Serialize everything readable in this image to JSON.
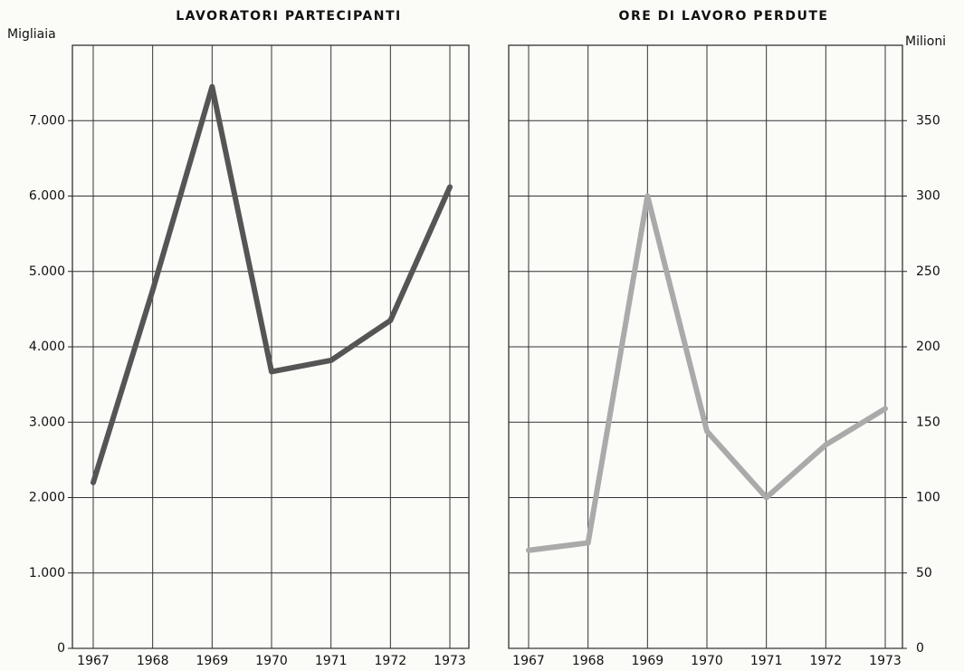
{
  "chart_data": [
    {
      "type": "line",
      "title": "LAVORATORI PARTECIPANTI",
      "ylabel": "Migliaia",
      "categories": [
        "1967",
        "1968",
        "1969",
        "1970",
        "1971",
        "1972",
        "1973"
      ],
      "values": [
        2200,
        4750,
        7450,
        3670,
        3820,
        4350,
        6120
      ],
      "color": "#555555",
      "ylim": [
        0,
        8000
      ],
      "yticks": [
        0,
        {
          "value": 1000,
          "label": "1.000"
        },
        {
          "value": 2000,
          "label": "2.000"
        },
        {
          "value": 3000,
          "label": "3.000"
        },
        {
          "value": 4000,
          "label": "4.000"
        },
        {
          "value": 5000,
          "label": "5.000"
        },
        {
          "value": 6000,
          "label": "6.000"
        },
        {
          "value": 7000,
          "label": "7.000"
        }
      ],
      "y_axis_position": "left",
      "grid": true
    },
    {
      "type": "line",
      "title": "ORE DI LAVORO PERDUTE",
      "ylabel": "Milioni",
      "categories": [
        "1967",
        "1968",
        "1969",
        "1970",
        "1971",
        "1972",
        "1973"
      ],
      "values": [
        65,
        70,
        300,
        144,
        100,
        135,
        159
      ],
      "color": "#aaaaaa",
      "ylim": [
        0,
        400
      ],
      "yticks": [
        0,
        50,
        100,
        150,
        200,
        250,
        300,
        350
      ],
      "y_axis_position": "right",
      "grid": true
    }
  ]
}
